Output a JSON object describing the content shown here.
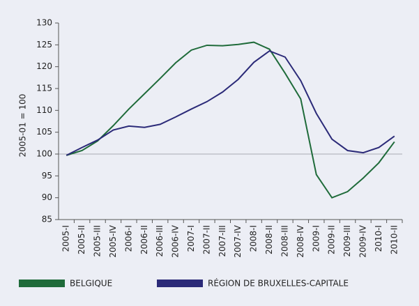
{
  "chart_data": {
    "type": "line",
    "y_label": "2005-01 = 100",
    "categories": [
      "2005-I",
      "2005-II",
      "2005-III",
      "2005-IV",
      "2006-I",
      "2006-II",
      "2006-III",
      "2006-IV",
      "2007-I",
      "2007-II",
      "2007-III",
      "2007-IV",
      "2008-I",
      "2008-II",
      "2008-III",
      "2008-IV",
      "2009-I",
      "2009-II",
      "2009-III",
      "2009-IV",
      "2010-I",
      "2010-II"
    ],
    "series": [
      {
        "name": "BELGIQUE",
        "color": "#1f6b3a",
        "values": [
          99.7,
          100.8,
          103,
          106.5,
          110.3,
          113.8,
          117.3,
          120.9,
          123.8,
          124.9,
          124.8,
          125.1,
          125.6,
          124,
          118.5,
          112.6,
          95.3,
          90,
          91.4,
          94.5,
          98,
          102.8
        ]
      },
      {
        "name": "RÉGION DE BRUXELLES-CAPITALE",
        "color": "#2b2a78",
        "values": [
          99.7,
          101.5,
          103.2,
          105.5,
          106.4,
          106.1,
          106.8,
          108.5,
          110.3,
          112,
          114.2,
          117.1,
          121,
          123.6,
          122.2,
          116.8,
          109.3,
          103.4,
          100.8,
          100.3,
          101.5,
          104.1
        ]
      }
    ],
    "ylim": [
      85,
      130
    ],
    "yticks": [
      85,
      90,
      95,
      100,
      105,
      110,
      115,
      120,
      125,
      130
    ],
    "reference_line": 100
  }
}
